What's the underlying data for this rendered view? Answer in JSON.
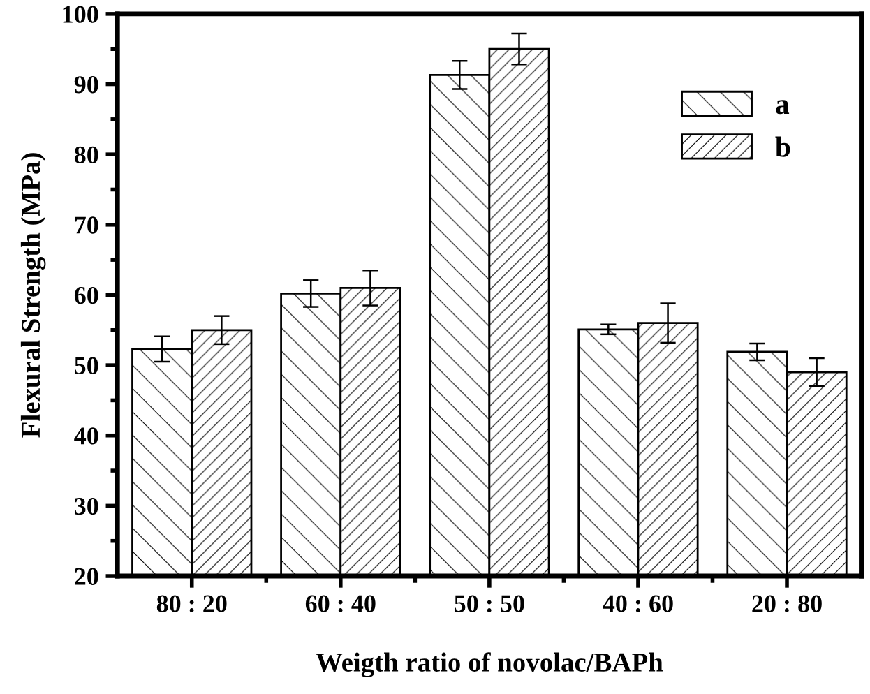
{
  "chart_data": {
    "type": "bar",
    "xlabel": "Weigth ratio of novolac/BAPh",
    "ylabel": "Flexural Strength (MPa)",
    "categories": [
      "80 : 20",
      "60 : 40",
      "50 : 50",
      "40 : 60",
      "20 : 80"
    ],
    "series": [
      {
        "name": "a",
        "color": "#000000",
        "values": [
          52.3,
          60.2,
          91.3,
          55.1,
          51.9
        ],
        "errors": [
          1.8,
          1.9,
          2.0,
          0.7,
          1.2
        ]
      },
      {
        "name": "b",
        "color": "#000000",
        "values": [
          55.0,
          61.0,
          95.0,
          56.0,
          49.0
        ],
        "errors": [
          2.0,
          2.5,
          2.2,
          2.8,
          2.0
        ]
      }
    ],
    "ylim": [
      20,
      100
    ],
    "yticks": [
      20,
      30,
      40,
      50,
      60,
      70,
      80,
      90,
      100
    ],
    "grid": false,
    "legend": "top right"
  }
}
